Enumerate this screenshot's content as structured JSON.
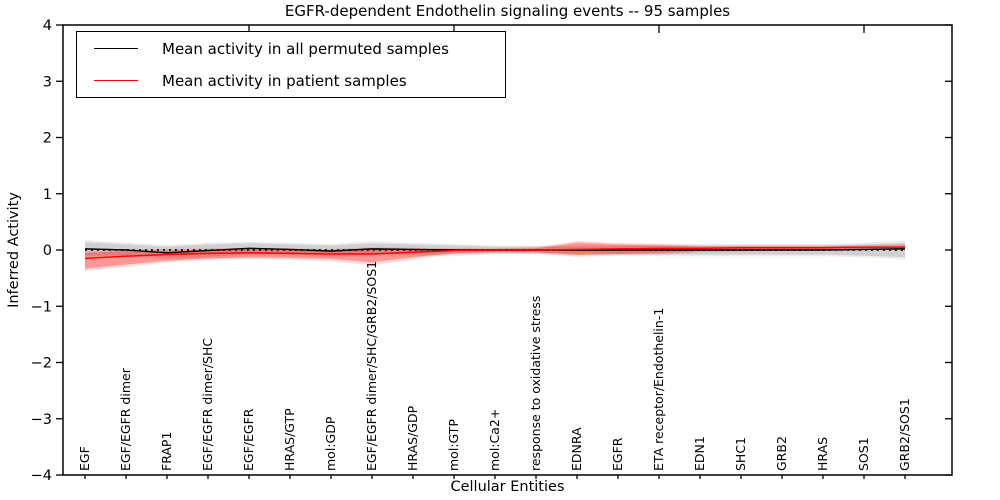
{
  "chart_data": {
    "type": "line",
    "title": "EGFR-dependent Endothelin signaling events -- 95 samples",
    "xlabel": "Cellular Entities",
    "ylabel": "Inferred Activity",
    "ylim": [
      -4,
      4
    ],
    "ytick_step": 1,
    "grid": false,
    "legend_position": "upper-left",
    "zero_line": {
      "style": "dotted",
      "color": "#000000",
      "y": 0
    },
    "top_tick_indices": [
      4,
      9,
      14,
      19
    ],
    "band_colors": {
      "permuted_inner": "rgba(0,0,0,0.12)",
      "permuted_outer": "rgba(0,0,0,0.07)",
      "patient_inner": "rgba(255,0,0,0.30)",
      "patient_outer": "rgba(255,0,0,0.15)"
    },
    "categories": [
      "EGF",
      "EGF/EGFR dimer",
      "FRAP1",
      "EGF/EGFR dimer/SHC",
      "EGF/EGFR",
      "HRAS/GTP",
      "mol:GDP",
      "EGF/EGFR dimer/SHC/GRB2/SOS1",
      "HRAS/GDP",
      "mol:GTP",
      "mol:Ca2+",
      "response to oxidative stress",
      "EDNRA",
      "EGFR",
      "ETA receptor/Endothelin-1",
      "EDN1",
      "SHC1",
      "GRB2",
      "HRAS",
      "SOS1",
      "GRB2/SOS1"
    ],
    "series": [
      {
        "name": "Mean activity in all permuted samples",
        "color": "#000000",
        "values": [
          0.02,
          0.0,
          -0.05,
          -0.01,
          0.03,
          0.01,
          -0.02,
          0.02,
          0.01,
          0.0,
          0.0,
          0.0,
          0.0,
          0.0,
          0.0,
          0.0,
          0.0,
          0.0,
          0.0,
          0.01,
          0.02
        ],
        "band_inner_hi": [
          0.14,
          0.1,
          0.06,
          0.1,
          0.12,
          0.1,
          0.08,
          0.12,
          0.1,
          0.08,
          0.06,
          0.06,
          0.06,
          0.07,
          0.08,
          0.08,
          0.08,
          0.08,
          0.08,
          0.1,
          0.13
        ],
        "band_inner_lo": [
          -0.1,
          -0.1,
          -0.14,
          -0.12,
          -0.08,
          -0.08,
          -0.11,
          -0.09,
          -0.08,
          -0.08,
          -0.06,
          -0.06,
          -0.06,
          -0.07,
          -0.08,
          -0.08,
          -0.08,
          -0.08,
          -0.08,
          -0.1,
          -0.13
        ],
        "band_outer_hi": [
          0.18,
          0.13,
          0.09,
          0.13,
          0.15,
          0.13,
          0.11,
          0.16,
          0.13,
          0.11,
          0.08,
          0.08,
          0.08,
          0.09,
          0.11,
          0.11,
          0.11,
          0.11,
          0.11,
          0.13,
          0.17
        ],
        "band_outer_lo": [
          -0.14,
          -0.13,
          -0.17,
          -0.15,
          -0.11,
          -0.11,
          -0.14,
          -0.12,
          -0.11,
          -0.11,
          -0.08,
          -0.08,
          -0.08,
          -0.09,
          -0.11,
          -0.11,
          -0.11,
          -0.11,
          -0.11,
          -0.13,
          -0.17
        ]
      },
      {
        "name": "Mean activity in patient samples",
        "color": "#ff0000",
        "values": [
          -0.15,
          -0.11,
          -0.08,
          -0.06,
          -0.05,
          -0.06,
          -0.07,
          -0.07,
          -0.04,
          -0.01,
          0.0,
          0.0,
          0.01,
          0.02,
          0.03,
          0.03,
          0.04,
          0.04,
          0.04,
          0.05,
          0.05
        ],
        "band_inner_hi": [
          -0.05,
          -0.02,
          -0.01,
          0.01,
          0.02,
          0.01,
          0.0,
          0.02,
          0.02,
          0.02,
          0.02,
          0.03,
          0.13,
          0.1,
          0.08,
          0.06,
          0.06,
          0.06,
          0.06,
          0.07,
          0.08
        ],
        "band_inner_lo": [
          -0.33,
          -0.26,
          -0.19,
          -0.15,
          -0.13,
          -0.14,
          -0.16,
          -0.22,
          -0.13,
          -0.05,
          -0.03,
          -0.04,
          -0.09,
          -0.07,
          -0.05,
          -0.02,
          -0.01,
          0.0,
          0.01,
          0.02,
          0.02
        ],
        "band_outer_hi": [
          -0.02,
          0.01,
          0.02,
          0.03,
          0.04,
          0.03,
          0.02,
          0.05,
          0.04,
          0.03,
          0.03,
          0.05,
          0.16,
          0.13,
          0.11,
          0.08,
          0.08,
          0.08,
          0.08,
          0.09,
          0.1
        ],
        "band_outer_lo": [
          -0.37,
          -0.3,
          -0.22,
          -0.18,
          -0.16,
          -0.17,
          -0.2,
          -0.27,
          -0.17,
          -0.07,
          -0.05,
          -0.06,
          -0.12,
          -0.1,
          -0.08,
          -0.04,
          -0.03,
          -0.02,
          -0.01,
          0.0,
          0.0
        ]
      }
    ]
  }
}
